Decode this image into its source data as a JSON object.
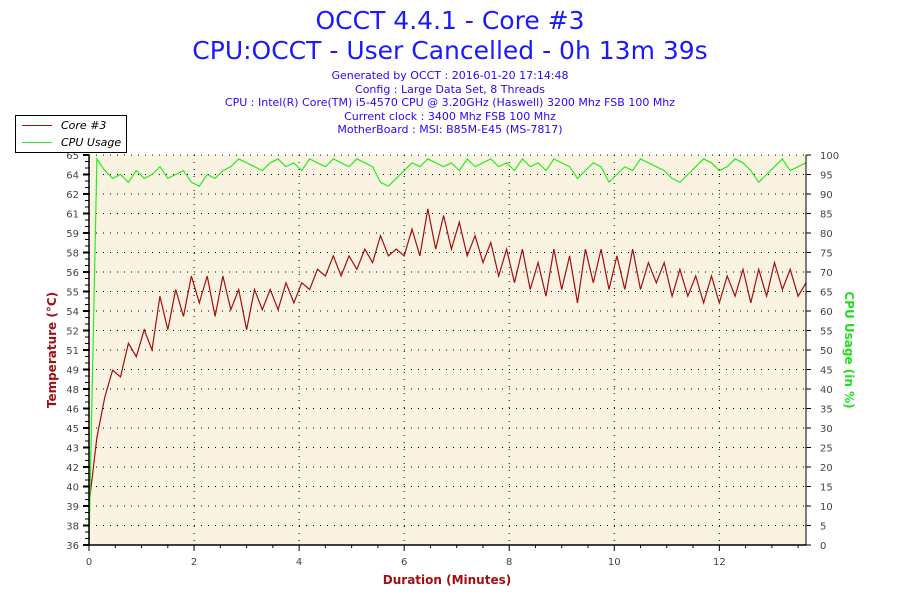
{
  "header": {
    "title": "OCCT 4.4.1 - Core #3",
    "subtitle": "CPU:OCCT - User Cancelled - 0h 13m 39s",
    "info": [
      "Generated by OCCT : 2016-01-20 17:14:48",
      "Config : Large Data Set, 8 Threads",
      "CPU : Intel(R) Core(TM) i5-4570 CPU @ 3.20GHz (Haswell) 3200 Mhz FSB 100 Mhz",
      "Current clock : 3400 Mhz FSB 100 Mhz",
      "MotherBoard : MSI: B85M-E45 (MS-7817)"
    ]
  },
  "chart_data": {
    "type": "line",
    "xlabel": "Duration (Minutes)",
    "ylabel": "Temperature (°C)",
    "y2label": "CPU Usage (in %)",
    "xlim": [
      0,
      13.65
    ],
    "ylim": [
      36,
      65
    ],
    "y2lim": [
      0,
      100
    ],
    "xticks": [
      "0",
      "2",
      "4",
      "6",
      "8",
      "10",
      "12"
    ],
    "yticks": [
      "36",
      "38",
      "39",
      "40",
      "42",
      "43",
      "45",
      "46",
      "48",
      "49",
      "51",
      "52",
      "54",
      "55",
      "56",
      "58",
      "59",
      "61",
      "62",
      "64",
      "65"
    ],
    "y2ticks": [
      "0",
      "5",
      "10",
      "15",
      "20",
      "25",
      "30",
      "35",
      "40",
      "45",
      "50",
      "55",
      "60",
      "65",
      "70",
      "75",
      "80",
      "85",
      "90",
      "95",
      "100"
    ],
    "grid": true,
    "legend": "top-left",
    "colors": {
      "temp": "#a01010",
      "cpu": "#22ee22",
      "title": "#1a1aff",
      "axis_label_left": "#a01010",
      "axis_label_right": "#22dd22",
      "plot_bg": "#fbf3e2"
    },
    "series": [
      {
        "name": "Core #3",
        "axis": "left",
        "step": 0.15,
        "values": [
          39,
          44,
          47,
          49,
          48.5,
          51,
          50,
          52,
          50.5,
          54.5,
          52,
          55,
          53,
          56,
          54,
          56,
          53,
          56,
          53.5,
          55,
          52,
          55,
          53.5,
          55,
          53.5,
          55.5,
          54,
          55.5,
          55,
          56.5,
          56,
          57.5,
          56,
          57.5,
          56.5,
          58,
          57,
          59,
          57.5,
          58,
          57.5,
          59.5,
          57.5,
          61,
          58,
          60.5,
          58,
          60,
          57.5,
          59,
          57,
          58.5,
          56,
          58,
          55.5,
          58,
          55,
          57,
          54.5,
          58,
          55,
          57.5,
          54,
          58,
          55.5,
          58,
          55,
          57.5,
          55,
          58,
          55,
          57,
          55.5,
          57,
          54.5,
          56.5,
          54.5,
          56,
          54,
          56,
          54,
          56,
          54.5,
          56.5,
          54,
          56.5,
          54.5,
          57,
          55,
          56.5,
          54.5,
          55.5
        ]
      },
      {
        "name": "CPU Usage",
        "axis": "right",
        "step": 0.15,
        "values": [
          0,
          99,
          96,
          94,
          95,
          93,
          96,
          94,
          95,
          97,
          94,
          95,
          96,
          93,
          92,
          95,
          94,
          96,
          97,
          99,
          98,
          97,
          96,
          98,
          99,
          97,
          98,
          96,
          99,
          98,
          97,
          99,
          98,
          97,
          99,
          98,
          97,
          93,
          92,
          94,
          96,
          98,
          97,
          99,
          98,
          97,
          98,
          96,
          99,
          97,
          98,
          99,
          97,
          98,
          96,
          99,
          97,
          98,
          96,
          99,
          98,
          97,
          94,
          96,
          98,
          97,
          93,
          95,
          97,
          96,
          99,
          98,
          97,
          96,
          94,
          93,
          95,
          97,
          99,
          98,
          96,
          97,
          99,
          98,
          96,
          93,
          95,
          97,
          99,
          96,
          97,
          98
        ]
      }
    ]
  }
}
